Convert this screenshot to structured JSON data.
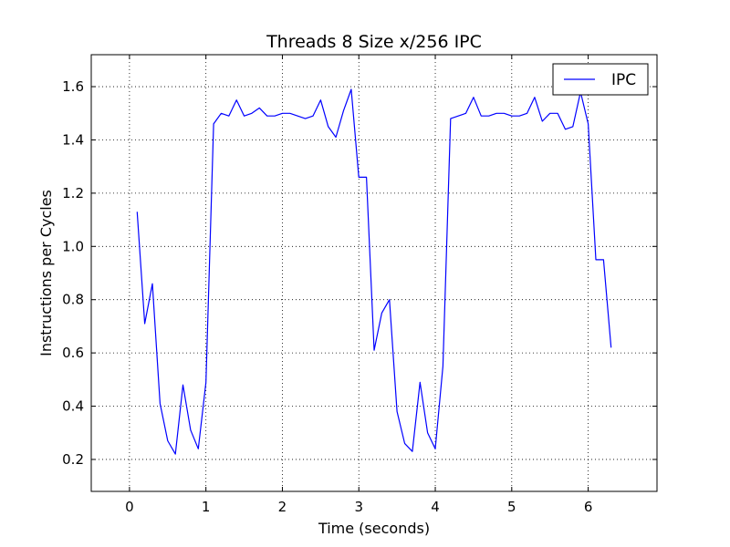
{
  "chart_data": {
    "type": "line",
    "title": "Threads 8 Size x/256 IPC",
    "xlabel": "Time (seconds)",
    "ylabel": "Instructions per Cycles",
    "xlim": [
      -0.5,
      6.9
    ],
    "ylim": [
      0.08,
      1.72
    ],
    "xticks": [
      0,
      1,
      2,
      3,
      4,
      5,
      6
    ],
    "xtick_labels": [
      "0",
      "1",
      "2",
      "3",
      "4",
      "5",
      "6"
    ],
    "yticks": [
      0.2,
      0.4,
      0.6,
      0.8,
      1.0,
      1.2,
      1.4,
      1.6
    ],
    "ytick_labels": [
      "0.2",
      "0.4",
      "0.6",
      "0.8",
      "1.0",
      "1.2",
      "1.4",
      "1.6"
    ],
    "grid": true,
    "legend_position": "top-right",
    "series": [
      {
        "name": "IPC",
        "color": "#0000ff",
        "x": [
          0.1,
          0.2,
          0.3,
          0.4,
          0.5,
          0.6,
          0.7,
          0.8,
          0.9,
          1.0,
          1.1,
          1.2,
          1.3,
          1.4,
          1.5,
          1.6,
          1.7,
          1.8,
          1.9,
          2.0,
          2.1,
          2.2,
          2.3,
          2.4,
          2.5,
          2.6,
          2.7,
          2.8,
          2.9,
          3.0,
          3.1,
          3.2,
          3.3,
          3.4,
          3.5,
          3.6,
          3.7,
          3.8,
          3.9,
          4.0,
          4.1,
          4.2,
          4.3,
          4.4,
          4.5,
          4.6,
          4.7,
          4.8,
          4.9,
          5.0,
          5.1,
          5.2,
          5.3,
          5.4,
          5.5,
          5.6,
          5.7,
          5.8,
          5.9,
          6.0,
          6.1,
          6.2,
          6.3
        ],
        "y": [
          1.13,
          0.71,
          0.86,
          0.41,
          0.27,
          0.22,
          0.48,
          0.31,
          0.24,
          0.49,
          1.46,
          1.5,
          1.49,
          1.55,
          1.49,
          1.5,
          1.52,
          1.49,
          1.49,
          1.5,
          1.5,
          1.49,
          1.48,
          1.49,
          1.55,
          1.45,
          1.41,
          1.51,
          1.59,
          1.26,
          1.26,
          0.61,
          0.75,
          0.8,
          0.38,
          0.26,
          0.23,
          0.49,
          0.3,
          0.24,
          0.55,
          1.48,
          1.49,
          1.5,
          1.56,
          1.49,
          1.49,
          1.5,
          1.5,
          1.49,
          1.49,
          1.5,
          1.56,
          1.47,
          1.5,
          1.5,
          1.44,
          1.45,
          1.58,
          1.46,
          0.95,
          0.95,
          0.62
        ]
      }
    ]
  }
}
